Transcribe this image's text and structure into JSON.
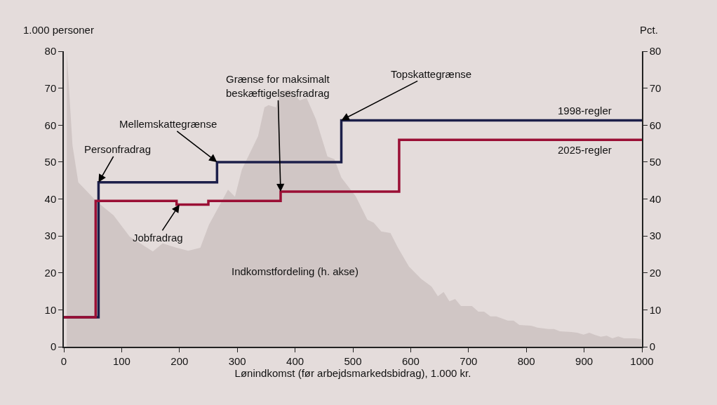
{
  "chart_data": {
    "type": "step",
    "xlabel": "Lønindkomst (før arbejdsmarkedsbidrag), 1.000 kr.",
    "ylabel": "1.000 personer",
    "y2label": "Pct.",
    "xlim": [
      0,
      1000
    ],
    "xticks": [
      0,
      100,
      200,
      300,
      400,
      500,
      600,
      700,
      800,
      900,
      1000
    ],
    "ylim": [
      0,
      80
    ],
    "yticks": [
      0,
      10,
      20,
      30,
      40,
      50,
      60,
      70,
      80
    ],
    "y2lim": [
      0,
      80
    ],
    "y2ticks": [
      0,
      10,
      20,
      30,
      40,
      50,
      60,
      70,
      80
    ],
    "grid": false,
    "legend": false,
    "series": [
      {
        "type": "area",
        "axis": "y2",
        "color": "#d0c6c5",
        "x": [
          5,
          15,
          25,
          57,
          86,
          114,
          154,
          171,
          195,
          215,
          236,
          251,
          284,
          296,
          308,
          336,
          347,
          354,
          367,
          375,
          391,
          408,
          420,
          436,
          456,
          468,
          480,
          505,
          525,
          536,
          549,
          565,
          578,
          597,
          618,
          636,
          647,
          657,
          667,
          677,
          687,
          706,
          717,
          727,
          738,
          748,
          768,
          778,
          788,
          808,
          819,
          838,
          848,
          858,
          878,
          888,
          899,
          909,
          919,
          929,
          939,
          949,
          959,
          969,
          988,
          999
        ],
        "values": [
          80,
          54.5,
          44.5,
          39.3,
          35.6,
          29.8,
          25.8,
          28,
          26.8,
          26,
          26.8,
          33,
          42.5,
          40.6,
          48,
          57,
          64.8,
          65.4,
          64.8,
          69.2,
          69.6,
          66.7,
          67.3,
          61.6,
          51.5,
          50.8,
          45.8,
          40.7,
          34.4,
          33.6,
          31.2,
          30.8,
          26.8,
          21.7,
          18.4,
          16.3,
          13.7,
          14.8,
          12.3,
          12.9,
          11,
          11,
          9.5,
          9.5,
          8.2,
          8.2,
          7.1,
          7.1,
          5.9,
          5.7,
          5.2,
          4.8,
          4.8,
          4.2,
          4,
          3.8,
          3.3,
          3.8,
          3.2,
          2.7,
          3,
          2.3,
          2.8,
          2.3,
          2.3,
          2.1
        ]
      },
      {
        "name": "1998-regler",
        "color": "#1c1f4a",
        "x": [
          0,
          60,
          265,
          480,
          1000
        ],
        "values": [
          8,
          44.5,
          50,
          61.3,
          61.3
        ]
      },
      {
        "name": "2025-regler",
        "color": "#9a0f35",
        "x": [
          0,
          55,
          195,
          250,
          375,
          580,
          1000
        ],
        "values": [
          8,
          39.5,
          38.5,
          39.5,
          42,
          56,
          56
        ]
      }
    ],
    "annotations": [
      {
        "text": "Personfradrag",
        "x": 60,
        "y": 44.5
      },
      {
        "text": "Mellemskattegrænse",
        "x": 265,
        "y": 50
      },
      {
        "text": "Grænse for maksimalt\nbeskæftigelsesfradrag",
        "x": 375,
        "y": 42
      },
      {
        "text": "Topskattegrænse",
        "x": 480,
        "y": 61.3
      },
      {
        "text": "Jobfradrag",
        "x": 200,
        "y": 38.5
      },
      "Indkomstfordeling (h. akse)"
    ]
  }
}
